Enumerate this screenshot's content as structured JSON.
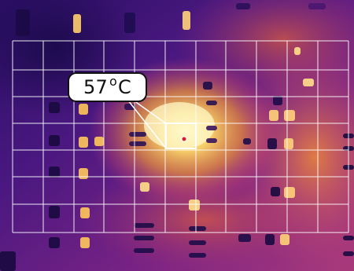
{
  "measurement": {
    "value": "57",
    "degree_symbol": "o",
    "unit": "C"
  },
  "image_type": "thermal-camera-view-of-circuit-board",
  "palette": {
    "cold": "#1c0a52",
    "cool": "#5a1c8a",
    "warm": "#c23a7e",
    "hot": "#f07c2a",
    "hottest": "#fff5b4",
    "grid": "#ffffff",
    "spot_marker": "#d81e2a"
  }
}
